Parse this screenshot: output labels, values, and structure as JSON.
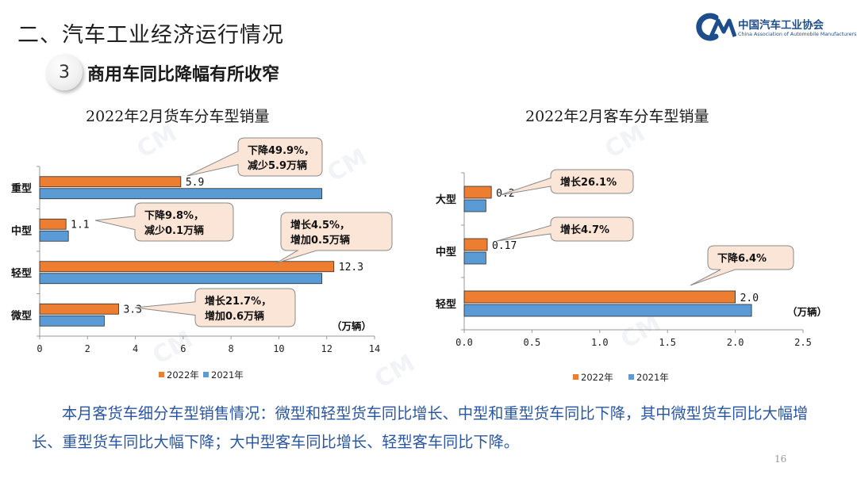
{
  "header": {
    "title": "二、汽车工业经济运行情况",
    "logo_cn": "中国汽车工业协会",
    "logo_en": "China Association of Automobile Manufacturers"
  },
  "subtitle": {
    "number": "3",
    "text": "商用车同比降幅有所收窄"
  },
  "colors": {
    "y2022": "#ED7D31",
    "y2021": "#5B9BD5",
    "footer_text": "#2A56A0"
  },
  "chart_data": [
    {
      "type": "bar",
      "orientation": "horizontal",
      "title": "2022年2月货车分车型销量",
      "categories": [
        "重型",
        "中型",
        "轻型",
        "微型"
      ],
      "series": [
        {
          "name": "2022年",
          "values": [
            5.9,
            1.1,
            12.3,
            3.3
          ],
          "color": "#ED7D31"
        },
        {
          "name": "2021年",
          "values": [
            11.8,
            1.2,
            11.8,
            2.7
          ],
          "color": "#5B9BD5"
        }
      ],
      "data_labels": [
        "5.9",
        "1.1",
        "12.3",
        "3.3"
      ],
      "xlim": [
        0,
        14
      ],
      "xticks": [
        "0",
        "2",
        "4",
        "6",
        "8",
        "10",
        "12",
        "14"
      ],
      "unit": "（万辆）",
      "legend_position": "bottom",
      "grid": false,
      "annotations": [
        {
          "category": "重型",
          "lines": [
            "下降49.9%，",
            "减少5.9万辆"
          ]
        },
        {
          "category": "中型",
          "lines": [
            "下降9.8%，",
            "减少0.1万辆"
          ]
        },
        {
          "category": "轻型",
          "lines": [
            "增长4.5%，",
            "增加0.5万辆"
          ]
        },
        {
          "category": "微型",
          "lines": [
            "增长21.7%，",
            "增加0.6万辆"
          ]
        }
      ]
    },
    {
      "type": "bar",
      "orientation": "horizontal",
      "title": "2022年2月客车分车型销量",
      "categories": [
        "大型",
        "中型",
        "轻型"
      ],
      "series": [
        {
          "name": "2022年",
          "values": [
            0.2,
            0.17,
            2.0
          ],
          "color": "#ED7D31"
        },
        {
          "name": "2021年",
          "values": [
            0.16,
            0.16,
            2.12
          ],
          "color": "#5B9BD5"
        }
      ],
      "data_labels": [
        "0.2",
        "0.17",
        "2.0"
      ],
      "xlim": [
        0,
        2.5
      ],
      "xticks": [
        "0.0",
        "0.5",
        "1.0",
        "1.5",
        "2.0",
        "2.5"
      ],
      "unit": "（万辆）",
      "legend_position": "bottom",
      "grid": false,
      "annotations": [
        {
          "category": "大型",
          "lines": [
            "增长26.1%"
          ]
        },
        {
          "category": "中型",
          "lines": [
            "增长4.7%"
          ]
        },
        {
          "category": "轻型",
          "lines": [
            "下降6.4%"
          ]
        }
      ]
    }
  ],
  "footer": {
    "paragraph": "本月客货车细分车型销售情况：微型和轻型货车同比增长、中型和重型货车同比下降，其中微型货车同比大幅增长、重型货车同比大幅下降；大中型客车同比增长、轻型客车同比下降。",
    "page_number": "16"
  }
}
